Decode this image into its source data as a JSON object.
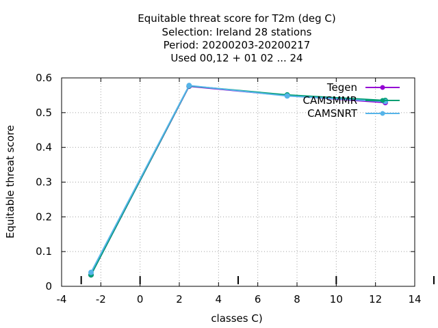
{
  "chart_data": {
    "type": "line",
    "title_lines": [
      "Equitable threat score  for T2m (deg C)",
      "Selection: Ireland     28 stations",
      "Period: 20200203-20200217",
      "Used  00,12  + 01 02 ... 24"
    ],
    "xlabel": "classes C)",
    "ylabel": "Equitable threat score",
    "xlim": [
      -4,
      14
    ],
    "ylim": [
      0,
      0.6
    ],
    "x_ticks": [
      -4,
      -2,
      0,
      2,
      4,
      6,
      8,
      10,
      12,
      14
    ],
    "x_tick_labels": [
      "-4",
      "-2",
      "0",
      "2",
      "4",
      "6",
      "8",
      "10",
      "12",
      "14"
    ],
    "y_ticks": [
      0,
      0.1,
      0.2,
      0.3,
      0.4,
      0.5,
      0.6
    ],
    "y_tick_labels": [
      "0",
      "0.1",
      "0.2",
      "0.3",
      "0.4",
      "0.5",
      "0.6"
    ],
    "grid": true,
    "legend_position": "top-right",
    "series": [
      {
        "name": "Tegen",
        "color": "#9400d3",
        "x": [
          -2.5,
          2.5,
          7.5,
          12.5
        ],
        "y": [
          0.033,
          0.576,
          0.549,
          0.529
        ]
      },
      {
        "name": "CAMSMMR",
        "color": "#009e73",
        "x": [
          -2.5,
          2.5,
          7.5,
          12.5
        ],
        "y": [
          0.033,
          0.577,
          0.551,
          0.535
        ]
      },
      {
        "name": "CAMSNRT",
        "color": "#56b4e9",
        "x": [
          -2.5,
          2.5,
          7.5,
          12.5
        ],
        "y": [
          0.04,
          0.578,
          0.548,
          0.532
        ]
      }
    ],
    "bottom_markers_x": [
      -3,
      0,
      5,
      10,
      15
    ]
  }
}
